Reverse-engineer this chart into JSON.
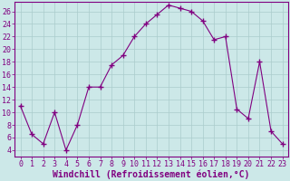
{
  "x": [
    0,
    1,
    2,
    3,
    4,
    5,
    6,
    7,
    8,
    9,
    10,
    11,
    12,
    13,
    14,
    15,
    16,
    17,
    18,
    19,
    20,
    21,
    22,
    23
  ],
  "y": [
    11,
    6.5,
    5,
    10,
    4,
    8,
    14,
    14,
    17.5,
    19,
    22,
    24,
    25.5,
    27,
    26.5,
    26,
    24.5,
    21.5,
    22,
    10.5,
    9,
    18,
    7,
    5
  ],
  "line_color": "#800080",
  "marker": "+",
  "marker_size": 4,
  "bg_color": "#cce8e8",
  "grid_color": "#aacccc",
  "xlabel": "Windchill (Refroidissement éolien,°C)",
  "xlabel_fontsize": 7,
  "ylabel_ticks": [
    4,
    6,
    8,
    10,
    12,
    14,
    16,
    18,
    20,
    22,
    24,
    26
  ],
  "xlim": [
    -0.5,
    23.5
  ],
  "ylim": [
    3,
    27.5
  ],
  "xticks": [
    0,
    1,
    2,
    3,
    4,
    5,
    6,
    7,
    8,
    9,
    10,
    11,
    12,
    13,
    14,
    15,
    16,
    17,
    18,
    19,
    20,
    21,
    22,
    23
  ],
  "tick_fontsize": 6,
  "xlabel_color": "#800080",
  "tick_color": "#800080",
  "spine_color": "#800080"
}
